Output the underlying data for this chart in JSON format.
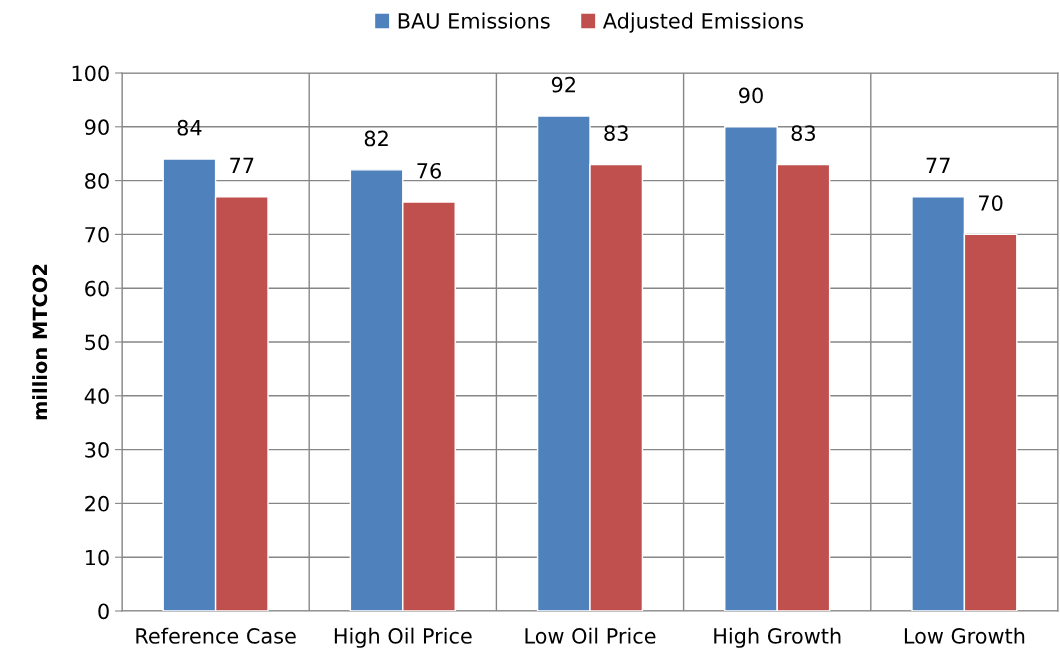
{
  "chart_data": {
    "type": "bar",
    "ylabel": "million MTCO2",
    "categories": [
      "Reference Case",
      "High Oil Price",
      "Low Oil Price",
      "High Growth",
      "Low Growth"
    ],
    "series": [
      {
        "name": "BAU Emissions",
        "color": "#4f81bd",
        "values": [
          84,
          82,
          92,
          90,
          77
        ]
      },
      {
        "name": "Adjusted Emissions",
        "color": "#c0504d",
        "values": [
          77,
          76,
          83,
          83,
          70
        ]
      }
    ],
    "ylim": [
      0,
      100
    ],
    "yticks": [
      0,
      10,
      20,
      30,
      40,
      50,
      60,
      70,
      80,
      90,
      100
    ],
    "grid": true,
    "legend": "top",
    "data_labels": true
  }
}
